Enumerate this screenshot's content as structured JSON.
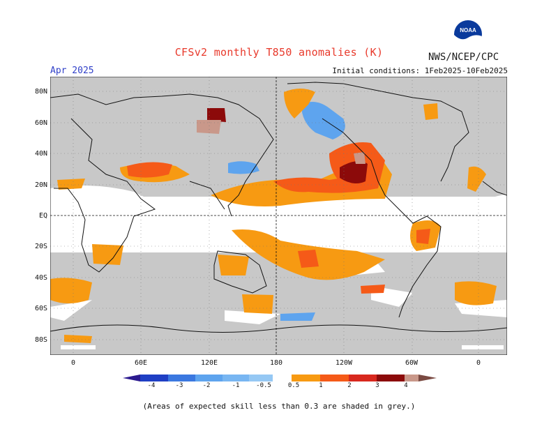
{
  "header": {
    "title": "CFSv2 monthly T850 anomalies (K)",
    "org": "NWS/NCEP/CPC",
    "month": "Apr 2025",
    "initial_conditions": "Initial conditions: 1Feb2025-10Feb2025",
    "logo_text": "NOAA"
  },
  "axes": {
    "lat_labels": [
      "80N",
      "60N",
      "40N",
      "20N",
      "EQ",
      "20S",
      "40S",
      "60S",
      "80S"
    ],
    "lon_labels": [
      "0",
      "60E",
      "120E",
      "180",
      "120W",
      "60W",
      "0"
    ]
  },
  "colorbar": {
    "labels": [
      "-4",
      "-3",
      "-2",
      "-1",
      "-0.5",
      "0.5",
      "1",
      "2",
      "3",
      "4"
    ],
    "colors": [
      "#2b1a8f",
      "#1f3fc4",
      "#3b78e0",
      "#5ea4ee",
      "#95c8f4",
      "#ffffff",
      "#f79a12",
      "#f55a18",
      "#d8281e",
      "#8c0a0a",
      "#c9988a",
      "#7a4a42"
    ]
  },
  "footer": {
    "note": "(Areas of expected skill less than 0.3 are shaded in grey.)"
  },
  "palette": {
    "skill_grey": "#c8c8c8",
    "title_red": "#e8392b",
    "month_blue": "#2f3fc8"
  }
}
